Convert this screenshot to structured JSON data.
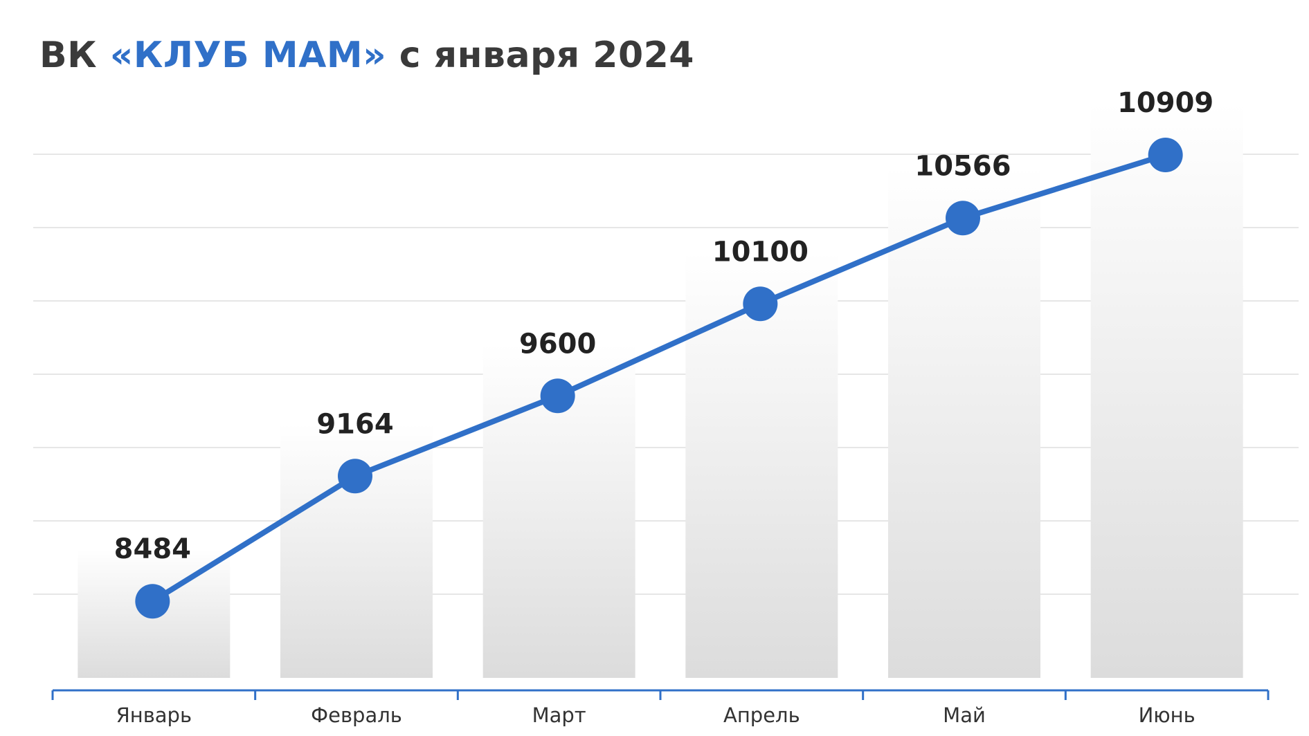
{
  "title": {
    "prefix": "ВК ",
    "highlight": "«КЛУБ МАМ»",
    "suffix": " с января 2024"
  },
  "colors": {
    "accent": "#3070c8",
    "line": "#3070c8",
    "title": "#3a3a3a",
    "grid": "#e6e6e6",
    "bar_top": "#ffffff",
    "bar_bottom": "#dcdcdc"
  },
  "chart_data": {
    "type": "line",
    "title": "ВК «КЛУБ МАМ» с января 2024",
    "xlabel": "",
    "ylabel": "",
    "categories": [
      "Январь",
      "Февраль",
      "Март",
      "Апрель",
      "Май",
      "Июнь"
    ],
    "series": [
      {
        "values": [
          8484,
          9164,
          9600,
          10100,
          10566,
          10909
        ]
      }
    ],
    "data_labels": [
      "8484",
      "9164",
      "9600",
      "10100",
      "10566",
      "10909"
    ],
    "ylim": [
      8000,
      11300
    ],
    "grid": true,
    "background_bars": true,
    "legend": "none"
  }
}
